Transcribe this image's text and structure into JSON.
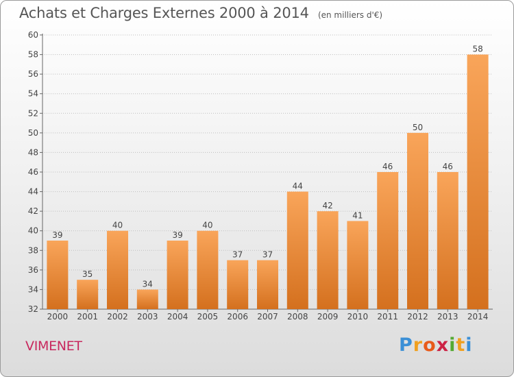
{
  "chart_data": {
    "type": "bar",
    "title": "Achats et Charges Externes 2000 à 2014",
    "unit": "(en milliers d'€)",
    "xlabel": "",
    "ylabel": "",
    "ylim": [
      32,
      60
    ],
    "ytick_step": 2,
    "grid": true,
    "categories": [
      "2000",
      "2001",
      "2002",
      "2003",
      "2004",
      "2005",
      "2006",
      "2007",
      "2008",
      "2009",
      "2010",
      "2011",
      "2012",
      "2013",
      "2014"
    ],
    "values": [
      39,
      35,
      40,
      34,
      39,
      40,
      37,
      37,
      44,
      42,
      41,
      46,
      50,
      46,
      58
    ],
    "bar_color_top": "#f9a55a",
    "bar_color_bottom": "#d4701e"
  },
  "commune": "VIMENET",
  "brand": {
    "letters": [
      "P",
      "r",
      "o",
      "x",
      "i",
      "t",
      "i"
    ],
    "colors": [
      "#3a8fd6",
      "#f0a020",
      "#e85a1a",
      "#cc2244",
      "#55aa33",
      "#f0a020",
      "#3a8fd6"
    ]
  }
}
